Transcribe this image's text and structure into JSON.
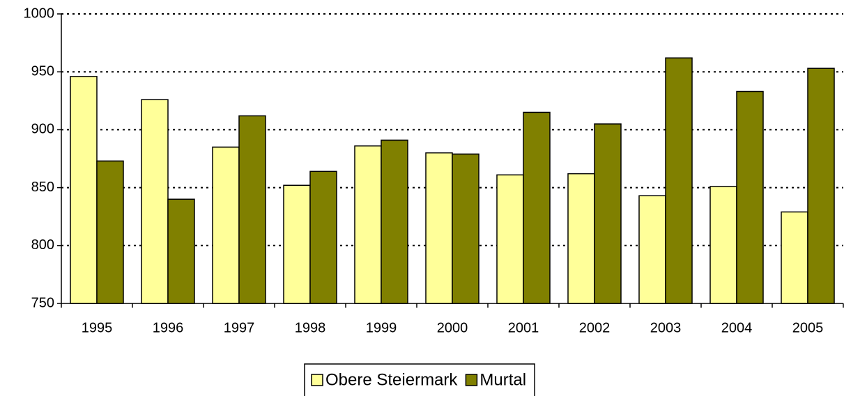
{
  "chart_data": {
    "type": "bar",
    "categories": [
      "1995",
      "1996",
      "1997",
      "1998",
      "1999",
      "2000",
      "2001",
      "2002",
      "2003",
      "2004",
      "2005"
    ],
    "series": [
      {
        "name": "Obere Steiermark",
        "color": "#ffff99",
        "values": [
          946,
          926,
          885,
          852,
          886,
          880,
          861,
          862,
          843,
          851,
          829
        ]
      },
      {
        "name": "Murtal",
        "color": "#808000",
        "values": [
          873,
          840,
          912,
          864,
          891,
          879,
          915,
          905,
          962,
          933,
          953
        ]
      }
    ],
    "ylim": [
      750,
      1000
    ],
    "yticks": [
      750,
      800,
      850,
      900,
      950,
      1000
    ],
    "grid": true,
    "legend": "bottom"
  }
}
